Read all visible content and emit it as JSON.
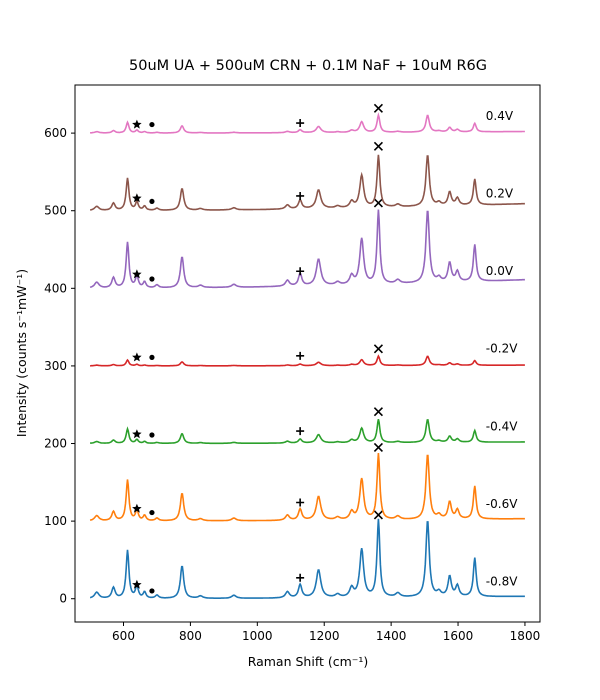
{
  "chart_data": {
    "type": "line",
    "title": "50uM UA + 500uM CRN + 0.1M NaF + 10uM R6G",
    "xlabel": "Raman Shift (cm⁻¹)",
    "ylabel": "Intensity (counts s⁻¹mW⁻¹)",
    "xlim": [
      455,
      1845
    ],
    "ylim": [
      -30,
      662
    ],
    "x_ticks": [
      600,
      800,
      1000,
      1200,
      1400,
      1600,
      1800
    ],
    "y_ticks": [
      0,
      100,
      200,
      300,
      400,
      500,
      600
    ],
    "grid": false,
    "peaks": [
      {
        "center": 520,
        "width": 8,
        "height": 0.08
      },
      {
        "center": 570,
        "width": 6,
        "height": 0.14
      },
      {
        "center": 612,
        "width": 5,
        "height": 0.62
      },
      {
        "center": 640,
        "width": 5,
        "height": 0.16
      },
      {
        "center": 663,
        "width": 5,
        "height": 0.08
      },
      {
        "center": 700,
        "width": 6,
        "height": 0.04
      },
      {
        "center": 775,
        "width": 6,
        "height": 0.42
      },
      {
        "center": 830,
        "width": 8,
        "height": 0.03
      },
      {
        "center": 930,
        "width": 8,
        "height": 0.04
      },
      {
        "center": 1090,
        "width": 7,
        "height": 0.08
      },
      {
        "center": 1128,
        "width": 6,
        "height": 0.17
      },
      {
        "center": 1183,
        "width": 8,
        "height": 0.36
      },
      {
        "center": 1240,
        "width": 8,
        "height": 0.04
      },
      {
        "center": 1282,
        "width": 7,
        "height": 0.12
      },
      {
        "center": 1312,
        "width": 7,
        "height": 0.62
      },
      {
        "center": 1362,
        "width": 5,
        "height": 1.0
      },
      {
        "center": 1420,
        "width": 8,
        "height": 0.05
      },
      {
        "center": 1509,
        "width": 6,
        "height": 0.99
      },
      {
        "center": 1543,
        "width": 7,
        "height": 0.06
      },
      {
        "center": 1575,
        "width": 6,
        "height": 0.26
      },
      {
        "center": 1598,
        "width": 6,
        "height": 0.14
      },
      {
        "center": 1650,
        "width": 5,
        "height": 0.5
      }
    ],
    "series": [
      {
        "name": "-0.8V",
        "offset": 0,
        "scale": 100,
        "color": "#1f77b4",
        "slope": 3,
        "markers": {
          "star": [
            640,
            18
          ],
          "dot": [
            685,
            10
          ],
          "plus": [
            1128,
            27
          ],
          "cross": [
            1362,
            108
          ]
        }
      },
      {
        "name": "-0.6V",
        "offset": 100,
        "scale": 85,
        "color": "#ff7f0e",
        "slope": 3,
        "markers": {
          "star": [
            640,
            116
          ],
          "dot": [
            685,
            111
          ],
          "plus": [
            1128,
            124
          ],
          "cross": [
            1362,
            195
          ]
        }
      },
      {
        "name": "-0.4V",
        "offset": 200,
        "scale": 30,
        "color": "#2ca02c",
        "slope": 2,
        "markers": {
          "star": [
            640,
            212
          ],
          "dot": [
            685,
            211
          ],
          "plus": [
            1128,
            216
          ],
          "cross": [
            1362,
            241
          ]
        }
      },
      {
        "name": "-0.2V",
        "offset": 300,
        "scale": 12,
        "color": "#d62728",
        "slope": 1,
        "markers": {
          "star": [
            640,
            311
          ],
          "dot": [
            685,
            311
          ],
          "plus": [
            1128,
            313
          ],
          "cross": [
            1362,
            322
          ]
        }
      },
      {
        "name": "0.0V",
        "offset": 400,
        "scale": 95,
        "color": "#9467bd",
        "slope": 11,
        "markers": {
          "star": [
            640,
            418
          ],
          "dot": [
            685,
            412
          ],
          "plus": [
            1128,
            422
          ],
          "cross": [
            1362,
            510
          ]
        }
      },
      {
        "name": "0.2V",
        "offset": 500,
        "scale": 67,
        "color": "#8c564b",
        "slope": 9,
        "markers": {
          "star": [
            640,
            516
          ],
          "dot": [
            685,
            512
          ],
          "plus": [
            1128,
            519
          ],
          "cross": [
            1362,
            583
          ]
        }
      },
      {
        "name": "0.4V",
        "offset": 600,
        "scale": 22,
        "color": "#e377c2",
        "slope": 2,
        "markers": {
          "star": [
            640,
            611
          ],
          "dot": [
            685,
            611
          ],
          "plus": [
            1128,
            613
          ],
          "cross": [
            1362,
            632
          ]
        }
      }
    ]
  }
}
